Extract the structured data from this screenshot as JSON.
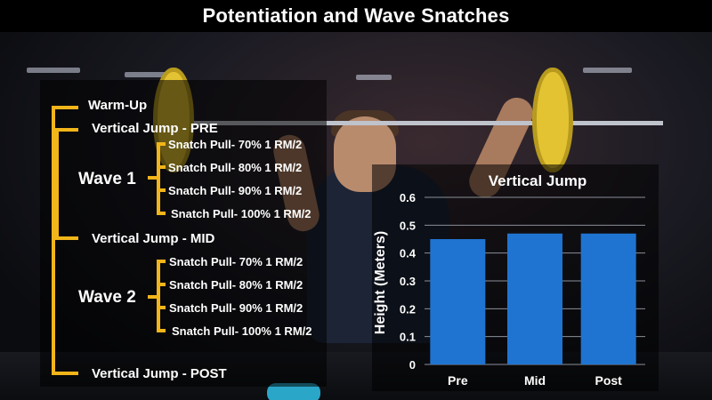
{
  "header": {
    "title": "Potentiation and Wave Snatches"
  },
  "protocol": {
    "warmup": "Warm-Up",
    "vj_pre": "Vertical Jump - PRE",
    "wave1_label": "Wave 1",
    "wave1_items": [
      "Snatch Pull- 70% 1 RM/2",
      "Snatch Pull- 80% 1 RM/2",
      "Snatch Pull- 90% 1 RM/2",
      "Snatch Pull- 100% 1 RM/2"
    ],
    "vj_mid": "Vertical Jump - MID",
    "wave2_label": "Wave 2",
    "wave2_items": [
      "Snatch Pull- 70% 1 RM/2",
      "Snatch Pull- 80% 1 RM/2",
      "Snatch Pull- 90% 1 RM/2",
      "Snatch Pull- 100% 1 RM/2"
    ],
    "vj_post": "Vertical Jump - POST"
  },
  "colors": {
    "bracket": "#f2b51a",
    "bar": "#1f74d1",
    "grid": "#8a8f99"
  },
  "chart_data": {
    "type": "bar",
    "title": "Vertical Jump",
    "xlabel": "",
    "ylabel": "Height (Meters)",
    "categories": [
      "Pre",
      "Mid",
      "Post"
    ],
    "values": [
      0.45,
      0.47,
      0.47
    ],
    "ylim": [
      0,
      0.6
    ],
    "yticks": [
      "0",
      "0.1",
      "0.2",
      "0.3",
      "0.4",
      "0.5",
      "0.6"
    ],
    "grid": true,
    "legend": "none"
  }
}
